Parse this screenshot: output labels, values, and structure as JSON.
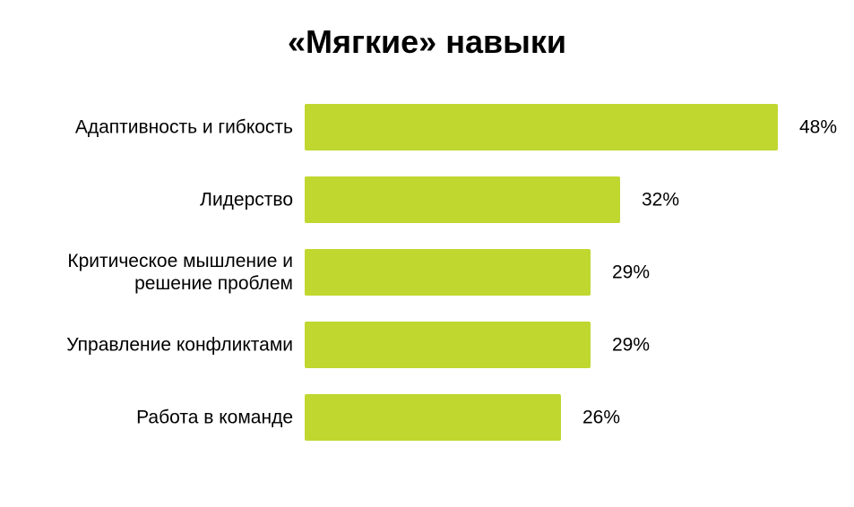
{
  "chart_data": {
    "type": "bar",
    "orientation": "horizontal",
    "title": "«Мягкие» навыки",
    "categories": [
      "Адаптивность и гибкость",
      "Лидерство",
      "Критическое мышление и решение проблем",
      "Управление конфликтами",
      "Работа в команде"
    ],
    "category_label_lines": [
      [
        "Адаптивность и гибкость"
      ],
      [
        "Лидерство"
      ],
      [
        "Критическое мышление и",
        "решение проблем"
      ],
      [
        "Управление конфликтами"
      ],
      [
        "Работа в команде"
      ]
    ],
    "values": [
      48,
      32,
      29,
      29,
      26
    ],
    "value_labels": [
      "48%",
      "32%",
      "29%",
      "29%",
      "26%"
    ],
    "unit": "%",
    "xlim": [
      0,
      48
    ],
    "grid": false,
    "legend": "none",
    "bar_color": "#c0d72f"
  }
}
